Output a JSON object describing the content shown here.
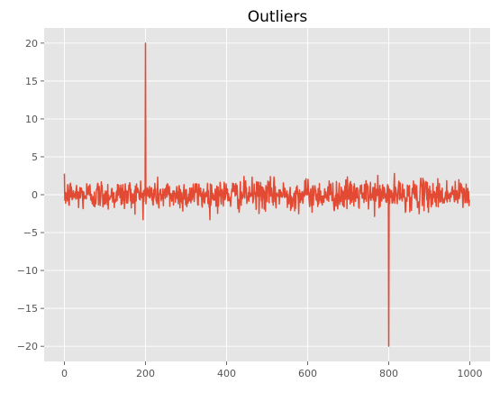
{
  "chart_data": {
    "type": "line",
    "title": "Outliers",
    "xlabel": "",
    "ylabel": "",
    "xlim": [
      -50,
      1050
    ],
    "ylim": [
      -22,
      22
    ],
    "x_ticks": [
      0,
      200,
      400,
      600,
      800,
      1000
    ],
    "y_ticks": [
      -20,
      -15,
      -10,
      -5,
      0,
      5,
      10,
      15,
      20
    ],
    "grid": true,
    "style": "ggplot",
    "colors": {
      "line": "#E24A33",
      "plot_background": "#E5E5E5",
      "grid": "#FFFFFF"
    },
    "series": [
      {
        "n_points": 1000,
        "x_start": 0,
        "x_step": 1,
        "baseline_noise": "standard normal, approx. range -3.3 to 3",
        "outliers": [
          {
            "x": 200,
            "y": 20
          },
          {
            "x": 800,
            "y": -20
          }
        ]
      }
    ]
  }
}
